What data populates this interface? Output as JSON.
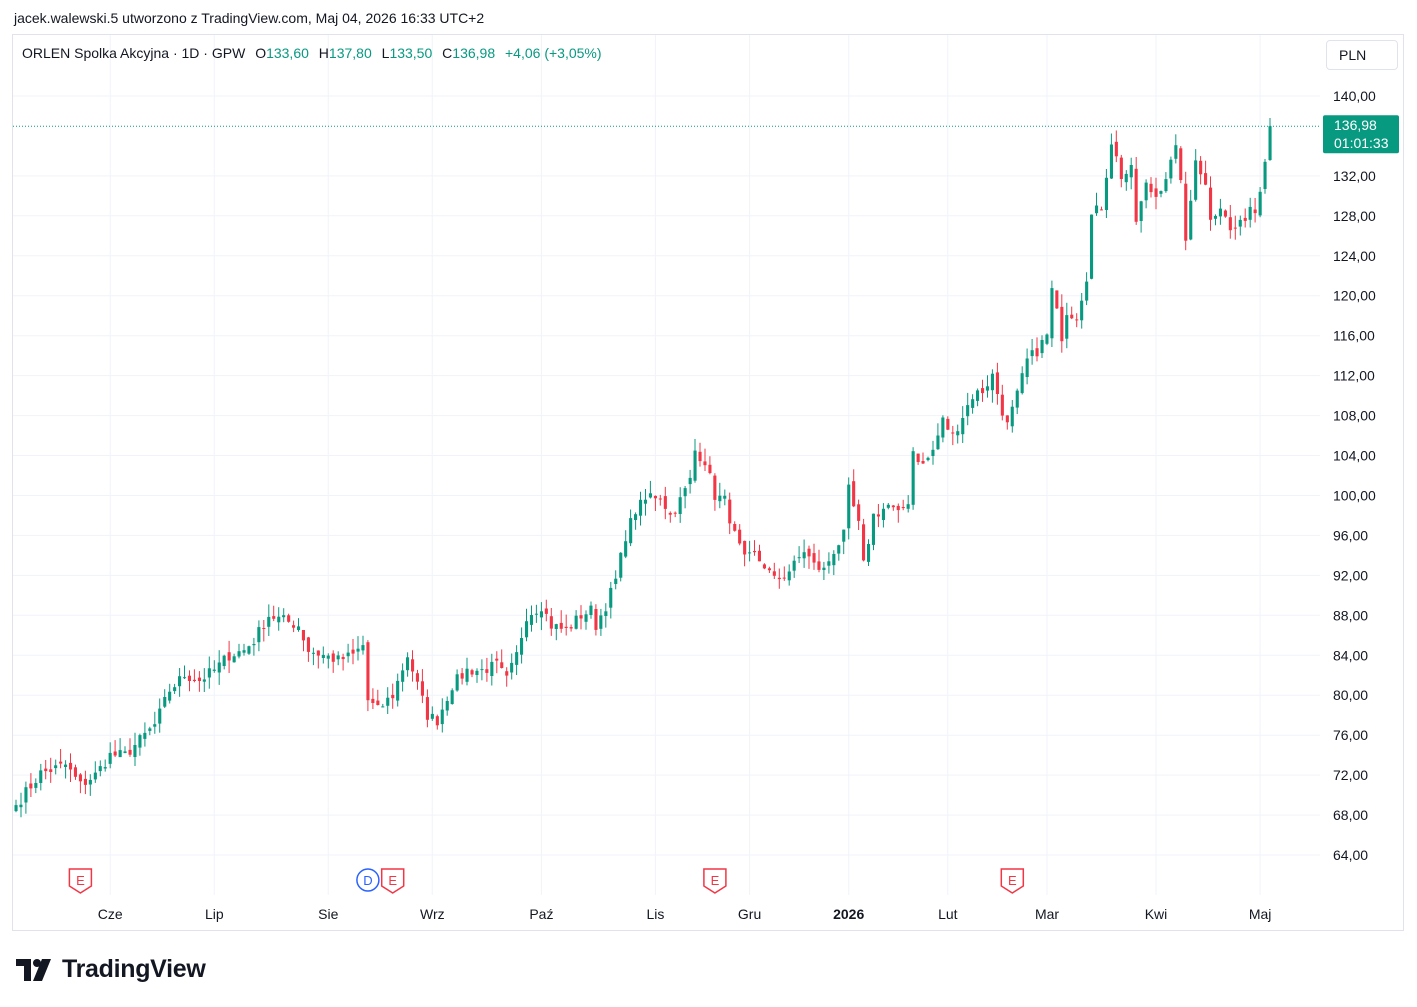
{
  "header": {
    "snapshot_text": "jacek.walewski.5 utworzono z TradingView.com, Maj 04, 2026 16:33 UTC+2"
  },
  "legend": {
    "symbol": "ORLEN Spolka Akcyjna · 1D · GPW",
    "open_label": "O",
    "open_value": "133,60",
    "high_label": "H",
    "high_value": "137,80",
    "low_label": "L",
    "low_value": "133,50",
    "close_label": "C",
    "close_value": "136,98",
    "change": "+4,06 (+3,05%)"
  },
  "currency": "PLN",
  "last_price": {
    "price_label": "136,98",
    "countdown": "01:01:33"
  },
  "colors": {
    "up": "#089981",
    "down": "#f23645",
    "grid": "#f0f3fa",
    "text": "#131722",
    "dividend_marker": "#2962ff"
  },
  "branding": {
    "logo_icon": "tradingview-logo-icon",
    "logo_text": "TradingView"
  },
  "chart_data": {
    "type": "candlestick",
    "title": "ORLEN Spolka Akcyjna · 1D · GPW",
    "ylim": [
      62,
      143
    ],
    "y_ticks": [
      {
        "value": 140,
        "label": "140,00"
      },
      {
        "value": 132,
        "label": "132,00"
      },
      {
        "value": 128,
        "label": "128,00"
      },
      {
        "value": 124,
        "label": "124,00"
      },
      {
        "value": 120,
        "label": "120,00"
      },
      {
        "value": 116,
        "label": "116,00"
      },
      {
        "value": 112,
        "label": "112,00"
      },
      {
        "value": 108,
        "label": "108,00"
      },
      {
        "value": 104,
        "label": "104,00"
      },
      {
        "value": 100,
        "label": "100,00"
      },
      {
        "value": 96,
        "label": "96,00"
      },
      {
        "value": 92,
        "label": "92,00"
      },
      {
        "value": 88,
        "label": "88,00"
      },
      {
        "value": 84,
        "label": "84,00"
      },
      {
        "value": 80,
        "label": "80,00"
      },
      {
        "value": 76,
        "label": "76,00"
      },
      {
        "value": 72,
        "label": "72,00"
      },
      {
        "value": 68,
        "label": "68,00"
      },
      {
        "value": 64,
        "label": "64,00"
      }
    ],
    "x_ticks": [
      {
        "index": 19,
        "label": "Cze",
        "bold": false
      },
      {
        "index": 40,
        "label": "Lip",
        "bold": false
      },
      {
        "index": 63,
        "label": "Sie",
        "bold": false
      },
      {
        "index": 84,
        "label": "Wrz",
        "bold": false
      },
      {
        "index": 106,
        "label": "Paź",
        "bold": false
      },
      {
        "index": 129,
        "label": "Lis",
        "bold": false
      },
      {
        "index": 148,
        "label": "Gru",
        "bold": false
      },
      {
        "index": 168,
        "label": "2026",
        "bold": true
      },
      {
        "index": 188,
        "label": "Lut",
        "bold": false
      },
      {
        "index": 208,
        "label": "Mar",
        "bold": false
      },
      {
        "index": 230,
        "label": "Kwi",
        "bold": false
      },
      {
        "index": 251,
        "label": "Maj",
        "bold": false
      }
    ],
    "markers": [
      {
        "index": 13,
        "kind": "E"
      },
      {
        "index": 71,
        "kind": "D"
      },
      {
        "index": 76,
        "kind": "E"
      },
      {
        "index": 141,
        "kind": "E"
      },
      {
        "index": 201,
        "kind": "E"
      }
    ],
    "close_anchors": [
      [
        0,
        69.0
      ],
      [
        5,
        72.2
      ],
      [
        10,
        73.0
      ],
      [
        13,
        71.0
      ],
      [
        16,
        72.0
      ],
      [
        19,
        74.0
      ],
      [
        22,
        74.0
      ],
      [
        25,
        75.5
      ],
      [
        28,
        77.0
      ],
      [
        31,
        80.5
      ],
      [
        34,
        82.0
      ],
      [
        37,
        81.5
      ],
      [
        40,
        82.5
      ],
      [
        43,
        84.0
      ],
      [
        46,
        84.5
      ],
      [
        48,
        85.5
      ],
      [
        51,
        88.0
      ],
      [
        54,
        87.5
      ],
      [
        57,
        87.0
      ],
      [
        59,
        84.5
      ],
      [
        62,
        84.0
      ],
      [
        65,
        83.5
      ],
      [
        68,
        84.0
      ],
      [
        70,
        85.0
      ],
      [
        71,
        79.5
      ],
      [
        73,
        78.5
      ],
      [
        76,
        80.0
      ],
      [
        79,
        84.0
      ],
      [
        81,
        81.0
      ],
      [
        83,
        78.0
      ],
      [
        85,
        77.5
      ],
      [
        88,
        81.0
      ],
      [
        91,
        82.5
      ],
      [
        94,
        82.5
      ],
      [
        97,
        83.0
      ],
      [
        99,
        81.5
      ],
      [
        101,
        84.0
      ],
      [
        103,
        88.0
      ],
      [
        106,
        89.0
      ],
      [
        108,
        87.0
      ],
      [
        111,
        86.5
      ],
      [
        114,
        88.0
      ],
      [
        116,
        88.5
      ],
      [
        117,
        87.0
      ],
      [
        119,
        89.0
      ],
      [
        121,
        91.5
      ],
      [
        123,
        96.0
      ],
      [
        125,
        98.5
      ],
      [
        128,
        100.0
      ],
      [
        130,
        100.0
      ],
      [
        132,
        98.0
      ],
      [
        134,
        99.5
      ],
      [
        136,
        101.5
      ],
      [
        137,
        104.5
      ],
      [
        139,
        103.5
      ],
      [
        141,
        100.0
      ],
      [
        143,
        99.5
      ],
      [
        145,
        96.0
      ],
      [
        147,
        93.5
      ],
      [
        149,
        94.0
      ],
      [
        151,
        93.0
      ],
      [
        153,
        91.5
      ],
      [
        155,
        92.0
      ],
      [
        157,
        93.0
      ],
      [
        159,
        94.5
      ],
      [
        161,
        93.0
      ],
      [
        163,
        92.5
      ],
      [
        165,
        94.5
      ],
      [
        167,
        96.0
      ],
      [
        168,
        100.5
      ],
      [
        170,
        97.0
      ],
      [
        171,
        93.0
      ],
      [
        173,
        98.0
      ],
      [
        176,
        99.0
      ],
      [
        178,
        98.0
      ],
      [
        180,
        99.5
      ],
      [
        181,
        104.5
      ],
      [
        183,
        103.0
      ],
      [
        185,
        104.5
      ],
      [
        187,
        107.5
      ],
      [
        189,
        106.0
      ],
      [
        191,
        108.0
      ],
      [
        193,
        110.0
      ],
      [
        195,
        110.5
      ],
      [
        197,
        112.0
      ],
      [
        199,
        108.5
      ],
      [
        200,
        107.0
      ],
      [
        202,
        110.0
      ],
      [
        204,
        113.5
      ],
      [
        206,
        114.5
      ],
      [
        208,
        116.0
      ],
      [
        209,
        120.5
      ],
      [
        211,
        116.0
      ],
      [
        212,
        118.5
      ],
      [
        214,
        118.0
      ],
      [
        216,
        122.0
      ],
      [
        217,
        128.0
      ],
      [
        219,
        129.0
      ],
      [
        221,
        135.5
      ],
      [
        223,
        132.0
      ],
      [
        225,
        132.5
      ],
      [
        226,
        127.5
      ],
      [
        228,
        131.0
      ],
      [
        230,
        130.0
      ],
      [
        232,
        132.0
      ],
      [
        234,
        134.5
      ],
      [
        235,
        132.0
      ],
      [
        236,
        125.0
      ],
      [
        238,
        134.0
      ],
      [
        240,
        131.0
      ],
      [
        241,
        128.0
      ],
      [
        243,
        129.0
      ],
      [
        245,
        126.5
      ],
      [
        247,
        127.0
      ],
      [
        249,
        129.0
      ],
      [
        250,
        128.5
      ],
      [
        251,
        131.0
      ],
      [
        252,
        134.0
      ],
      [
        253,
        136.98
      ]
    ],
    "last_candle": {
      "open": 133.6,
      "high": 137.8,
      "low": 133.5,
      "close": 136.98
    }
  }
}
